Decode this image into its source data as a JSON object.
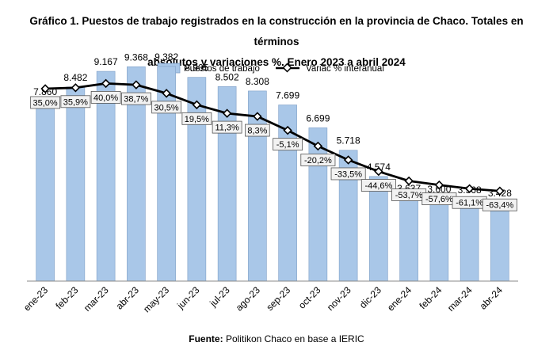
{
  "title_line1": "Gráfico 1. Puestos de trabajo registrados en la construcción en la provincia de Chaco. Totales en términos",
  "title_line2": "absolutos y variaciones %. Enero 2023 a abril 2024",
  "source_label": "Fuente:",
  "source_text": "Politikon Chaco en base a IERIC",
  "colors": {
    "bar_fill": "#a9c7e8",
    "bar_stroke": "#7f9fc6",
    "line": "#000000",
    "marker_fill": "#ffffff",
    "label_box_fill": "#f2f2f2",
    "label_box_stroke": "#555555"
  },
  "chart_data": {
    "type": "bar+line",
    "title": "Gráfico 1. Puestos de trabajo registrados en la construcción en la provincia de Chaco. Totales en términos absolutos y variaciones %. Enero 2023 a abril 2024",
    "legend_position": "top-center",
    "grid": false,
    "categories": [
      "ene-23",
      "feb-23",
      "mar-23",
      "abr-23",
      "may-23",
      "jun-23",
      "jul-23",
      "ago-23",
      "sep-23",
      "oct-23",
      "nov-23",
      "dic-23",
      "ene-24",
      "feb-24",
      "mar-24",
      "abr-24"
    ],
    "series": [
      {
        "name": "Puestos de trabajo",
        "type": "bar",
        "values": [
          7860,
          8482,
          9167,
          9368,
          9382,
          8905,
          8502,
          8308,
          7699,
          6699,
          5718,
          4574,
          3637,
          3600,
          3568,
          3428
        ],
        "labels": [
          "7.860",
          "8.482",
          "9.167",
          "9.368",
          "9.382",
          "8.905",
          "8.502",
          "8.308",
          "7.699",
          "6.699",
          "5.718",
          "4.574",
          "3.637",
          "3.600",
          "3.568",
          "3.428"
        ]
      },
      {
        "name": "Variac % interanual",
        "type": "line",
        "values": [
          35.0,
          35.9,
          40.0,
          38.7,
          30.5,
          19.5,
          11.3,
          8.3,
          -5.1,
          -20.2,
          -33.5,
          -44.6,
          -53.7,
          -57.6,
          -61.1,
          -63.4
        ],
        "labels": [
          "35,0%",
          "35,9%",
          "40,0%",
          "38,7%",
          "30,5%",
          "19,5%",
          "11,3%",
          "8,3%",
          "-5,1%",
          "-20,2%",
          "-33,5%",
          "-44,6%",
          "-53,7%",
          "-57,6%",
          "-61,1%",
          "-63,4%"
        ]
      }
    ],
    "bar_axis_range": [
      0,
      10000
    ],
    "line_axis_range": [
      -150,
      70
    ]
  }
}
